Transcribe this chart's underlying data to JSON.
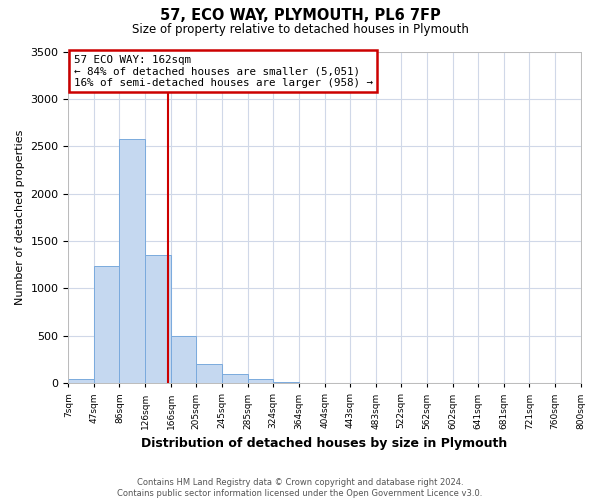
{
  "title": "57, ECO WAY, PLYMOUTH, PL6 7FP",
  "subtitle": "Size of property relative to detached houses in Plymouth",
  "xlabel": "Distribution of detached houses by size in Plymouth",
  "ylabel": "Number of detached properties",
  "bin_labels": [
    "7sqm",
    "47sqm",
    "86sqm",
    "126sqm",
    "166sqm",
    "205sqm",
    "245sqm",
    "285sqm",
    "324sqm",
    "364sqm",
    "404sqm",
    "443sqm",
    "483sqm",
    "522sqm",
    "562sqm",
    "602sqm",
    "641sqm",
    "681sqm",
    "721sqm",
    "760sqm",
    "800sqm"
  ],
  "bin_edges": [
    7,
    47,
    86,
    126,
    166,
    205,
    245,
    285,
    324,
    364,
    404,
    443,
    483,
    522,
    562,
    602,
    641,
    681,
    721,
    760,
    800
  ],
  "bar_heights": [
    50,
    1240,
    2580,
    1350,
    500,
    200,
    100,
    40,
    15,
    5,
    2,
    0,
    0,
    0,
    0,
    0,
    0,
    0,
    0,
    0
  ],
  "bar_color": "#c5d8f0",
  "bar_edge_color": "#7aaadd",
  "vline_x": 162,
  "vline_color": "#cc0000",
  "ylim": [
    0,
    3500
  ],
  "yticks": [
    0,
    500,
    1000,
    1500,
    2000,
    2500,
    3000,
    3500
  ],
  "annotation_title": "57 ECO WAY: 162sqm",
  "annotation_line1": "← 84% of detached houses are smaller (5,051)",
  "annotation_line2": "16% of semi-detached houses are larger (958) →",
  "annotation_box_color": "#ffffff",
  "annotation_box_edge": "#cc0000",
  "footer_line1": "Contains HM Land Registry data © Crown copyright and database right 2024.",
  "footer_line2": "Contains public sector information licensed under the Open Government Licence v3.0.",
  "background_color": "#ffffff",
  "grid_color": "#d0d8e8"
}
